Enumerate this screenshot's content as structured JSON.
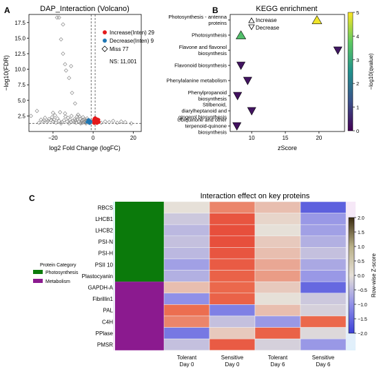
{
  "panels": {
    "a_letter": "A",
    "b_letter": "B",
    "c_letter": "C"
  },
  "colors": {
    "increase": "#e41a1c",
    "decrease": "#1f77b4",
    "miss": "#8a8a8a",
    "photosynthesis": "#0b7a0b",
    "metabolism": "#8b1a8f"
  },
  "chart_data": [
    {
      "type": "scatter",
      "title": "DAP_Interaction (Volcano)",
      "xlabel": "log2 Fold Change (logFC)",
      "ylabel": "−log10(FDR)",
      "xlim": [
        -32,
        24
      ],
      "ylim": [
        0,
        18.8
      ],
      "xticks": [
        -20,
        0,
        20
      ],
      "xtick_labels": [
        "−20",
        "0",
        "20"
      ],
      "yticks": [
        2.5,
        5.0,
        7.5,
        10.0,
        12.5,
        15.0,
        17.5
      ],
      "ytick_labels": [
        "2.5",
        "5.0",
        "7.5",
        "10.0",
        "12.5",
        "15.0",
        "17.5"
      ],
      "threshold_lines": {
        "x": [
          -1,
          1
        ],
        "y": 1.3
      },
      "legend": [
        {
          "label": "Increase(Inten) 29",
          "marker": "circle",
          "color": "#e41a1c"
        },
        {
          "label": "Decrease(Inten) 9",
          "marker": "circle",
          "color": "#1f77b4"
        },
        {
          "label": "Miss 77",
          "marker": "diamond",
          "color": "#8a8a8a"
        }
      ],
      "annotation": "NS: 11,001",
      "series": [
        {
          "name": "Increase(Inten) 29",
          "points": [
            [
              0.3,
              1.4
            ],
            [
              0.6,
              1.6
            ],
            [
              0.9,
              1.5
            ],
            [
              1.2,
              1.8
            ],
            [
              1.5,
              1.5
            ],
            [
              2.0,
              1.7
            ],
            [
              2.4,
              1.4
            ],
            [
              0.4,
              2.0
            ],
            [
              0.8,
              1.9
            ],
            [
              1.1,
              1.4
            ],
            [
              1.7,
              1.9
            ],
            [
              2.7,
              1.6
            ],
            [
              0.2,
              1.8
            ],
            [
              1.4,
              2.1
            ],
            [
              0.5,
              1.3
            ],
            [
              3.0,
              1.5
            ],
            [
              2.2,
              2.0
            ],
            [
              1.0,
              2.2
            ],
            [
              0.7,
              1.4
            ],
            [
              1.9,
              1.3
            ],
            [
              2.5,
              1.8
            ],
            [
              1.3,
              1.6
            ],
            [
              0.9,
              1.7
            ],
            [
              0.4,
              1.5
            ],
            [
              1.6,
              1.4
            ],
            [
              2.1,
              1.5
            ],
            [
              0.6,
              2.1
            ],
            [
              1.8,
              1.6
            ],
            [
              2.8,
              1.9
            ]
          ]
        },
        {
          "name": "Decrease(Inten) 9",
          "points": [
            [
              -1.5,
              1.4
            ],
            [
              -2.0,
              1.6
            ],
            [
              -1.2,
              1.5
            ],
            [
              -2.5,
              1.8
            ],
            [
              -1.8,
              1.3
            ],
            [
              -3.0,
              1.5
            ],
            [
              -1.4,
              1.7
            ],
            [
              -2.2,
              1.9
            ],
            [
              -1.1,
              1.6
            ]
          ]
        },
        {
          "name": "Miss 77",
          "points": [
            [
              -28,
              3.3
            ],
            [
              -31,
              2.5
            ],
            [
              -24,
              2.2
            ],
            [
              -22,
              2.0
            ],
            [
              -20,
              3.0
            ],
            [
              -19,
              2.6
            ],
            [
              -18,
              18.3
            ],
            [
              -17,
              18.3
            ],
            [
              -16,
              14.8
            ],
            [
              -15,
              12.5
            ],
            [
              -14,
              10.8
            ],
            [
              -13.5,
              9.8
            ],
            [
              -12,
              8.6
            ],
            [
              -10.5,
              6.2
            ],
            [
              -9,
              4.5
            ],
            [
              -8,
              2.4
            ],
            [
              -7.5,
              2.7
            ],
            [
              -7,
              1.6
            ],
            [
              -6.5,
              2.0
            ],
            [
              -6,
              1.4
            ],
            [
              -5.5,
              1.8
            ],
            [
              -5,
              2.3
            ],
            [
              -4.5,
              1.5
            ],
            [
              -4,
              1.7
            ],
            [
              -3.5,
              1.3
            ],
            [
              -3,
              2.1
            ],
            [
              -2.5,
              1.5
            ],
            [
              -15,
              17.2
            ],
            [
              -11,
              10.5
            ],
            [
              -16.5,
              3.1
            ],
            [
              -14,
              2.9
            ],
            [
              -12.5,
              2.2
            ],
            [
              -11.5,
              1.9
            ],
            [
              -10,
              1.7
            ],
            [
              -9.5,
              1.5
            ],
            [
              -8.5,
              1.4
            ],
            [
              -13,
              1.6
            ],
            [
              -15.5,
              1.5
            ],
            [
              -17,
              1.7
            ],
            [
              -18.5,
              1.4
            ],
            [
              -20,
              1.6
            ],
            [
              -21,
              1.8
            ],
            [
              -23,
              1.5
            ],
            [
              -25,
              1.6
            ],
            [
              -26,
              1.9
            ],
            [
              -27,
              1.4
            ],
            [
              -12,
              1.3
            ],
            [
              -10.8,
              2.5
            ],
            [
              -7.8,
              1.9
            ],
            [
              -6.8,
              2.4
            ],
            [
              -5.8,
              1.6
            ],
            [
              -4.8,
              1.9
            ],
            [
              -3.8,
              1.4
            ],
            [
              -2.8,
              1.8
            ],
            [
              -14.5,
              1.8
            ],
            [
              -16,
              1.3
            ],
            [
              -19.5,
              1.9
            ],
            [
              -22.5,
              1.7
            ],
            [
              -9.2,
              2.0
            ],
            [
              -13.8,
              2.4
            ],
            [
              -17.8,
              2.1
            ],
            [
              -11.2,
              1.5
            ],
            [
              -8.8,
              1.8
            ],
            [
              -6.2,
              1.3
            ],
            [
              -4.2,
              2.0
            ],
            [
              -3.2,
              1.6
            ],
            [
              4,
              1.4
            ],
            [
              6,
              1.6
            ],
            [
              8,
              1.5
            ],
            [
              10,
              1.7
            ],
            [
              12,
              1.4
            ],
            [
              14,
              1.6
            ],
            [
              16,
              1.5
            ],
            [
              19,
              1.3
            ],
            [
              -24.5,
              1.8
            ],
            [
              -20.5,
              2.3
            ],
            [
              -5.2,
              1.4
            ]
          ]
        }
      ]
    },
    {
      "type": "scatter",
      "title": "KEGG enrichment",
      "xlabel": "zScore",
      "xlim": [
        6.8,
        23.8
      ],
      "xticks": [
        10,
        15,
        20
      ],
      "xtick_labels": [
        "10",
        "15",
        "20"
      ],
      "colorbar": {
        "label": "−log10(qvalue)",
        "range": [
          0,
          5
        ],
        "ticks": [
          0,
          1,
          2,
          3,
          4,
          5
        ],
        "tick_labels": [
          "0",
          "1",
          "2",
          "3",
          "4",
          "5"
        ]
      },
      "legend": [
        {
          "label": "Increase",
          "marker": "triangle-up"
        },
        {
          "label": "Decrease",
          "marker": "triangle-down"
        }
      ],
      "categories": [
        "Photosynthesis - antenna proteins",
        "Photosynthesis",
        "Flavone and flavonol biosynthesis",
        "Flavonoid biosynthesis",
        "Phenylalanine metabolism",
        "Phenylpropanoid biosynthesis",
        "Stilbenoid, diarylheptanoid and gingerol biosynthesis",
        "Ubiquinone and other terpenoid-quinone biosynthesis"
      ],
      "category_label_lines": [
        [
          "Photosynthesis - antenna",
          "proteins"
        ],
        [
          "Photosynthesis"
        ],
        [
          "Flavone and flavonol",
          "biosynthesis"
        ],
        [
          "Flavonoid biosynthesis"
        ],
        [
          "Phenylalanine metabolism"
        ],
        [
          "Phenylpropanoid",
          "biosynthesis"
        ],
        [
          "Stilbenoid,",
          "diarylheptanoid and",
          "gingerol biosynthesis"
        ],
        [
          "Ubiquinone and other",
          "terpenoid-quinone",
          "biosynthesis"
        ]
      ],
      "points": [
        {
          "category": "Photosynthesis - antenna proteins",
          "zscore": 19.7,
          "qvalue_log": 4.9,
          "direction": "Increase"
        },
        {
          "category": "Photosynthesis",
          "zscore": 8.4,
          "qvalue_log": 3.5,
          "direction": "Increase"
        },
        {
          "category": "Flavone and flavonol biosynthesis",
          "zscore": 22.8,
          "qvalue_log": 0.35,
          "direction": "Decrease"
        },
        {
          "category": "Flavonoid biosynthesis",
          "zscore": 8.4,
          "qvalue_log": 0.3,
          "direction": "Decrease"
        },
        {
          "category": "Phenylalanine metabolism",
          "zscore": 9.4,
          "qvalue_log": 0.3,
          "direction": "Decrease"
        },
        {
          "category": "Phenylpropanoid biosynthesis",
          "zscore": 7.9,
          "qvalue_log": 0.25,
          "direction": "Decrease"
        },
        {
          "category": "Stilbenoid, diarylheptanoid and gingerol biosynthesis",
          "zscore": 10.0,
          "qvalue_log": 0.3,
          "direction": "Decrease"
        },
        {
          "category": "Ubiquinone and other terpenoid-quinone biosynthesis",
          "zscore": 7.8,
          "qvalue_log": 0.25,
          "direction": "Decrease"
        }
      ]
    },
    {
      "type": "heatmap",
      "title": "Interaction effect on key proteins",
      "rows": [
        "RBCS",
        "LHCB1",
        "LHCB2",
        "PSI-N",
        "PSI-H",
        "PSII 10",
        "Plastocyanin",
        "GAPDH-A",
        "Fibrillin1",
        "PAL",
        "C4H",
        "PPlase",
        "PMSR"
      ],
      "columns": [
        "Tolerant Day 0",
        "Sensitive Day 0",
        "Tolerant Day 6",
        "Sensitive Day 6"
      ],
      "column_label_lines": [
        [
          "Tolerant",
          "Day 0"
        ],
        [
          "Sensitive",
          "Day 0"
        ],
        [
          "Tolerant",
          "Day 6"
        ],
        [
          "Sensitive",
          "Day 6"
        ]
      ],
      "values": [
        [
          0.0,
          0.8,
          0.3,
          -1.6
        ],
        [
          -0.3,
          1.4,
          0.1,
          -0.9
        ],
        [
          -0.5,
          1.5,
          0.0,
          -0.8
        ],
        [
          -0.4,
          1.5,
          0.2,
          -0.6
        ],
        [
          -0.5,
          1.4,
          0.3,
          -0.4
        ],
        [
          -0.8,
          1.3,
          0.5,
          -0.7
        ],
        [
          -0.6,
          1.2,
          0.6,
          -0.9
        ],
        [
          0.3,
          1.1,
          0.2,
          -1.5
        ],
        [
          -1.0,
          1.2,
          0.0,
          -0.3
        ],
        [
          1.0,
          -1.2,
          0.3,
          -0.2
        ],
        [
          0.8,
          -0.4,
          -0.9,
          1.1
        ],
        [
          -1.3,
          0.2,
          1.2,
          -0.1
        ],
        [
          -0.4,
          1.3,
          -0.2,
          -0.9
        ]
      ],
      "row_categories": [
        {
          "name": "Photosynthesis",
          "rows": 7
        },
        {
          "name": "Metabolism",
          "rows": 6
        }
      ],
      "category_legend_title": "Protein Category",
      "colorbar": {
        "label": "Row-wise Z-score",
        "range": [
          -2.0,
          2.0
        ],
        "ticks": [
          -2.0,
          -1.5,
          -1.0,
          -0.5,
          0.0,
          0.5,
          1.0,
          1.5,
          2.0
        ],
        "tick_labels": [
          "−2.0",
          "−1.5",
          "−1.0",
          "−0.5",
          "0.0",
          "0.5",
          "1.0",
          "1.5",
          "2.0"
        ]
      }
    }
  ]
}
